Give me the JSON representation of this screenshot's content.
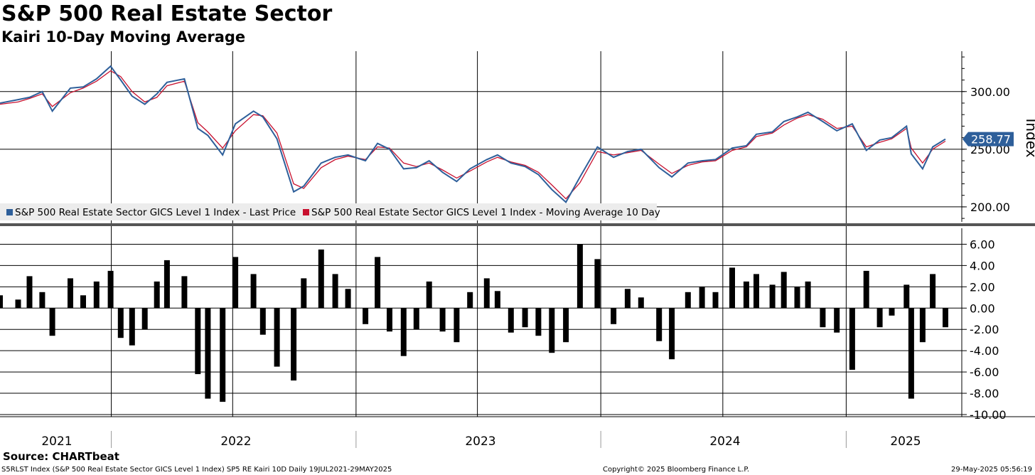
{
  "title": "S&P 500 Real Estate Sector",
  "subtitle": "Kairi 10-Day Moving Average",
  "source": "Source: CHARTbeat",
  "footer": {
    "left": "S5RLST Index (S&P 500 Real Estate Sector GICS Level 1 Index) SP5 RE Kairi 10D  Daily 19JUL2021-29MAY2025",
    "center": "Copyright© 2025 Bloomberg Finance L.P.",
    "right": "29-May-2025 05:56:19"
  },
  "colors": {
    "price": "#2e5f9a",
    "moving_average": "#c8102e",
    "kairi_bars": "#000000",
    "last_value_badge": "#2e5f9a",
    "grid": "#000000"
  },
  "chart_data": [
    {
      "type": "line",
      "panel": "upper",
      "y_axis_label": "Index",
      "yticks": [
        200,
        250,
        300
      ],
      "ytick_labels": [
        "200.00",
        "250.00",
        "300.00"
      ],
      "ylim": [
        187,
        335
      ],
      "grid": true,
      "legend_position": "bottom-left",
      "last_value": 258.77,
      "last_value_label": "258.77",
      "series": [
        {
          "name": "S&P 500 Real Estate Sector GICS Level 1 Index - Last Price",
          "x": [
            "2021-07-19",
            "2021-08-15",
            "2021-09-01",
            "2021-09-20",
            "2021-10-05",
            "2021-11-01",
            "2021-11-20",
            "2021-12-10",
            "2021-12-31",
            "2022-01-15",
            "2022-02-01",
            "2022-02-20",
            "2022-03-10",
            "2022-03-25",
            "2022-04-20",
            "2022-05-10",
            "2022-05-25",
            "2022-06-16",
            "2022-07-05",
            "2022-08-01",
            "2022-08-15",
            "2022-09-05",
            "2022-09-30",
            "2022-10-15",
            "2022-11-10",
            "2022-12-01",
            "2022-12-20",
            "2023-01-15",
            "2023-02-02",
            "2023-02-20",
            "2023-03-13",
            "2023-04-01",
            "2023-04-20",
            "2023-05-10",
            "2023-05-31",
            "2023-06-20",
            "2023-07-15",
            "2023-07-31",
            "2023-08-20",
            "2023-09-10",
            "2023-09-30",
            "2023-10-20",
            "2023-11-10",
            "2023-12-01",
            "2023-12-27",
            "2024-01-20",
            "2024-02-10",
            "2024-03-01",
            "2024-03-28",
            "2024-04-16",
            "2024-05-10",
            "2024-05-31",
            "2024-06-20",
            "2024-07-15",
            "2024-08-05",
            "2024-08-20",
            "2024-09-13",
            "2024-09-30",
            "2024-10-20",
            "2024-11-05",
            "2024-11-27",
            "2024-12-18",
            "2025-01-10",
            "2025-01-31",
            "2025-02-20",
            "2025-03-10",
            "2025-04-01",
            "2025-04-08",
            "2025-04-25",
            "2025-05-10",
            "2025-05-29"
          ],
          "values": [
            290,
            293,
            295,
            300,
            283,
            303,
            304,
            311,
            322,
            310,
            296,
            289,
            298,
            308,
            311,
            268,
            262,
            245,
            272,
            283,
            278,
            259,
            213,
            218,
            238,
            243,
            245,
            240,
            255,
            250,
            233,
            234,
            240,
            230,
            222,
            233,
            241,
            245,
            238,
            235,
            228,
            215,
            204,
            226,
            252,
            243,
            248,
            250,
            234,
            226,
            238,
            240,
            241,
            251,
            253,
            263,
            265,
            274,
            278,
            282,
            274,
            266,
            272,
            249,
            258,
            260,
            270,
            246,
            233,
            252,
            258.77
          ]
        },
        {
          "name": "S&P 500 Real Estate Sector GICS Level 1 Index - Moving Average 10 Day",
          "x": [
            "2021-07-19",
            "2021-08-15",
            "2021-09-01",
            "2021-09-20",
            "2021-10-05",
            "2021-11-01",
            "2021-11-20",
            "2021-12-10",
            "2021-12-31",
            "2022-01-15",
            "2022-02-01",
            "2022-02-20",
            "2022-03-10",
            "2022-03-25",
            "2022-04-20",
            "2022-05-10",
            "2022-05-25",
            "2022-06-16",
            "2022-07-05",
            "2022-08-01",
            "2022-08-15",
            "2022-09-05",
            "2022-09-30",
            "2022-10-15",
            "2022-11-10",
            "2022-12-01",
            "2022-12-20",
            "2023-01-15",
            "2023-02-02",
            "2023-02-20",
            "2023-03-13",
            "2023-04-01",
            "2023-04-20",
            "2023-05-10",
            "2023-05-31",
            "2023-06-20",
            "2023-07-15",
            "2023-07-31",
            "2023-08-20",
            "2023-09-10",
            "2023-09-30",
            "2023-10-20",
            "2023-11-10",
            "2023-12-01",
            "2023-12-27",
            "2024-01-20",
            "2024-02-10",
            "2024-03-01",
            "2024-03-28",
            "2024-04-16",
            "2024-05-10",
            "2024-05-31",
            "2024-06-20",
            "2024-07-15",
            "2024-08-05",
            "2024-08-20",
            "2024-09-13",
            "2024-09-30",
            "2024-10-20",
            "2024-11-05",
            "2024-11-27",
            "2024-12-18",
            "2025-01-10",
            "2025-01-31",
            "2025-02-20",
            "2025-03-10",
            "2025-04-01",
            "2025-04-08",
            "2025-04-25",
            "2025-05-10",
            "2025-05-29"
          ],
          "values": [
            289,
            291,
            294,
            298,
            287,
            299,
            303,
            309,
            318,
            313,
            300,
            291,
            295,
            305,
            309,
            273,
            265,
            251,
            266,
            280,
            279,
            264,
            220,
            216,
            234,
            241,
            244,
            241,
            252,
            251,
            238,
            235,
            238,
            232,
            225,
            231,
            239,
            243,
            239,
            236,
            230,
            219,
            207,
            221,
            248,
            245,
            247,
            249,
            237,
            229,
            236,
            239,
            240,
            249,
            252,
            261,
            264,
            271,
            277,
            280,
            276,
            268,
            270,
            252,
            256,
            259,
            268,
            251,
            238,
            250,
            257
          ]
        }
      ]
    },
    {
      "type": "bar",
      "panel": "lower",
      "name": "SP5 RE Kairi 10D",
      "yticks": [
        -10,
        -8,
        -6,
        -4,
        -2,
        0,
        2,
        4,
        6
      ],
      "ytick_labels": [
        "-10.00",
        "-8.00",
        "-6.00",
        "-4.00",
        "-2.00",
        "0.00",
        "2.00",
        "4.00",
        "6.00"
      ],
      "ylim": [
        -10.2,
        7.5
      ],
      "grid": true,
      "x": [
        "2021-07-19",
        "2021-08-15",
        "2021-09-01",
        "2021-09-20",
        "2021-10-05",
        "2021-11-01",
        "2021-11-20",
        "2021-12-10",
        "2021-12-31",
        "2022-01-15",
        "2022-02-01",
        "2022-02-20",
        "2022-03-10",
        "2022-03-25",
        "2022-04-20",
        "2022-05-10",
        "2022-05-25",
        "2022-06-16",
        "2022-07-05",
        "2022-08-01",
        "2022-08-15",
        "2022-09-05",
        "2022-09-30",
        "2022-10-15",
        "2022-11-10",
        "2022-12-01",
        "2022-12-20",
        "2023-01-15",
        "2023-02-02",
        "2023-02-20",
        "2023-03-13",
        "2023-04-01",
        "2023-04-20",
        "2023-05-10",
        "2023-05-31",
        "2023-06-20",
        "2023-07-15",
        "2023-07-31",
        "2023-08-20",
        "2023-09-10",
        "2023-09-30",
        "2023-10-20",
        "2023-11-10",
        "2023-12-01",
        "2023-12-27",
        "2024-01-20",
        "2024-02-10",
        "2024-03-01",
        "2024-03-28",
        "2024-04-16",
        "2024-05-10",
        "2024-05-31",
        "2024-06-20",
        "2024-07-15",
        "2024-08-05",
        "2024-08-20",
        "2024-09-13",
        "2024-09-30",
        "2024-10-20",
        "2024-11-05",
        "2024-11-27",
        "2024-12-18",
        "2025-01-10",
        "2025-01-31",
        "2025-02-20",
        "2025-03-10",
        "2025-04-01",
        "2025-04-08",
        "2025-04-25",
        "2025-05-10",
        "2025-05-29"
      ],
      "values": [
        1.2,
        0.8,
        3.0,
        1.5,
        -2.6,
        2.8,
        1.2,
        2.5,
        3.5,
        -2.8,
        -3.5,
        -2.0,
        2.5,
        4.5,
        3.0,
        -6.2,
        -8.5,
        -8.8,
        4.8,
        3.2,
        -2.5,
        -5.5,
        -6.8,
        2.8,
        5.5,
        3.2,
        1.8,
        -1.5,
        4.8,
        -2.2,
        -4.5,
        -2.0,
        2.5,
        -2.2,
        -3.2,
        1.5,
        2.8,
        1.6,
        -2.3,
        -1.8,
        -2.6,
        -4.2,
        -3.2,
        6.0,
        4.6,
        -1.5,
        1.8,
        1.0,
        -3.1,
        -4.8,
        1.5,
        2.0,
        1.5,
        3.8,
        2.5,
        3.2,
        2.2,
        3.4,
        2.0,
        2.5,
        -1.8,
        -2.3,
        -5.8,
        3.5,
        -1.8,
        -0.7,
        2.2,
        -8.5,
        -3.2,
        3.2,
        -1.8
      ]
    }
  ],
  "x_axis": {
    "labels": [
      "2021",
      "2022",
      "2023",
      "2024",
      "2025"
    ]
  }
}
